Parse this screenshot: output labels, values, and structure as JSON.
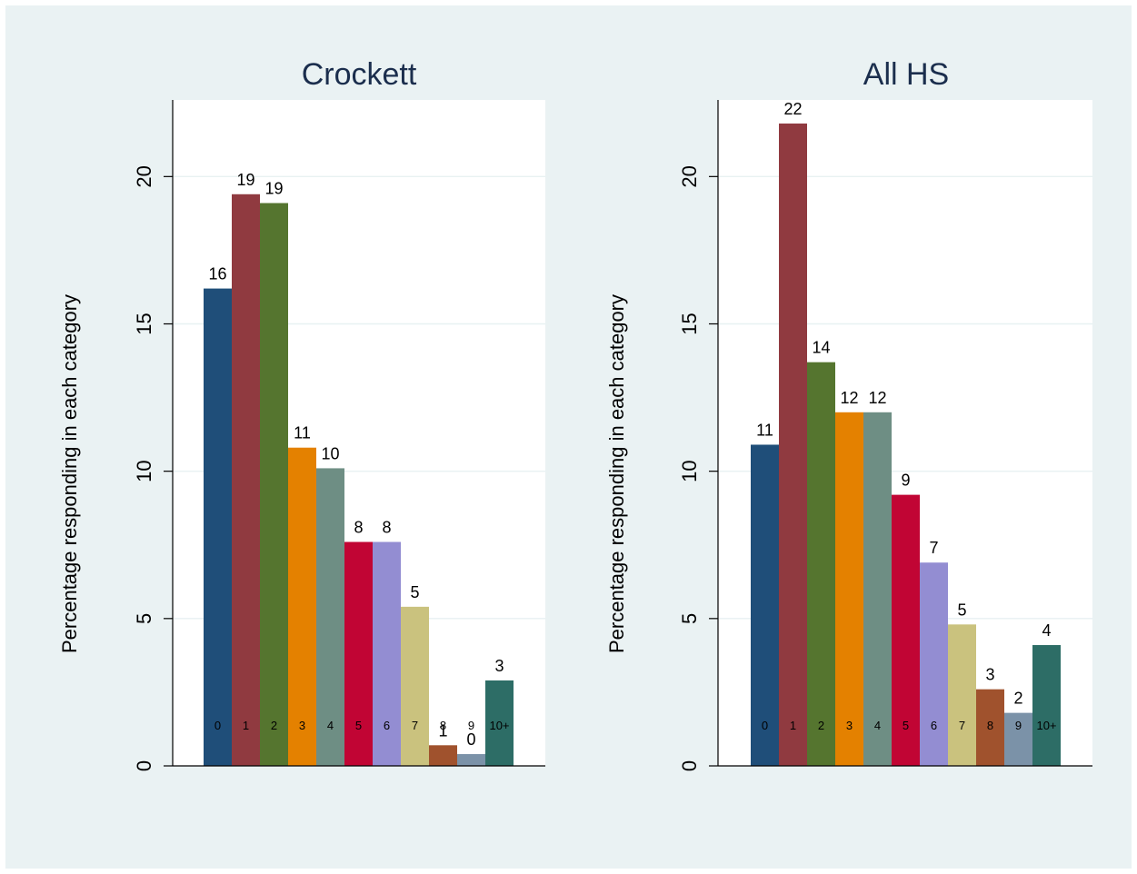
{
  "chart_data": [
    {
      "type": "bar",
      "title": "Crockett",
      "ylabel": "Percentage responding in each category",
      "xlabel": "",
      "categories": [
        "0",
        "1",
        "2",
        "3",
        "4",
        "5",
        "6",
        "7",
        "8",
        "9",
        "10+"
      ],
      "values": [
        16.2,
        19.4,
        19.1,
        10.8,
        10.1,
        7.6,
        7.6,
        5.4,
        0.7,
        0.4,
        2.9
      ],
      "data_labels": [
        "16",
        "19",
        "19",
        "11",
        "10",
        "8",
        "8",
        "5",
        "1",
        "0",
        "3"
      ],
      "ylim": [
        0,
        22.6
      ],
      "yticks": [
        0,
        5,
        10,
        15,
        20
      ],
      "grid": true,
      "colors": [
        "#1f4e79",
        "#903a40",
        "#55752f",
        "#e48100",
        "#6e8e84",
        "#c10534",
        "#938dd2",
        "#cac27e",
        "#a0522d",
        "#7b92a8",
        "#2d6d66"
      ]
    },
    {
      "type": "bar",
      "title": "All HS",
      "ylabel": "Percentage responding in each category",
      "xlabel": "",
      "categories": [
        "0",
        "1",
        "2",
        "3",
        "4",
        "5",
        "6",
        "7",
        "8",
        "9",
        "10+"
      ],
      "values": [
        10.9,
        21.8,
        13.7,
        12.0,
        12.0,
        9.2,
        6.9,
        4.8,
        2.6,
        1.8,
        4.1
      ],
      "data_labels": [
        "11",
        "22",
        "14",
        "12",
        "12",
        "9",
        "7",
        "5",
        "3",
        "2",
        "4"
      ],
      "ylim": [
        0,
        22.6
      ],
      "yticks": [
        0,
        5,
        10,
        15,
        20
      ],
      "grid": true,
      "colors": [
        "#1f4e79",
        "#903a40",
        "#55752f",
        "#e48100",
        "#6e8e84",
        "#c10534",
        "#938dd2",
        "#cac27e",
        "#a0522d",
        "#7b92a8",
        "#2d6d66"
      ]
    }
  ]
}
